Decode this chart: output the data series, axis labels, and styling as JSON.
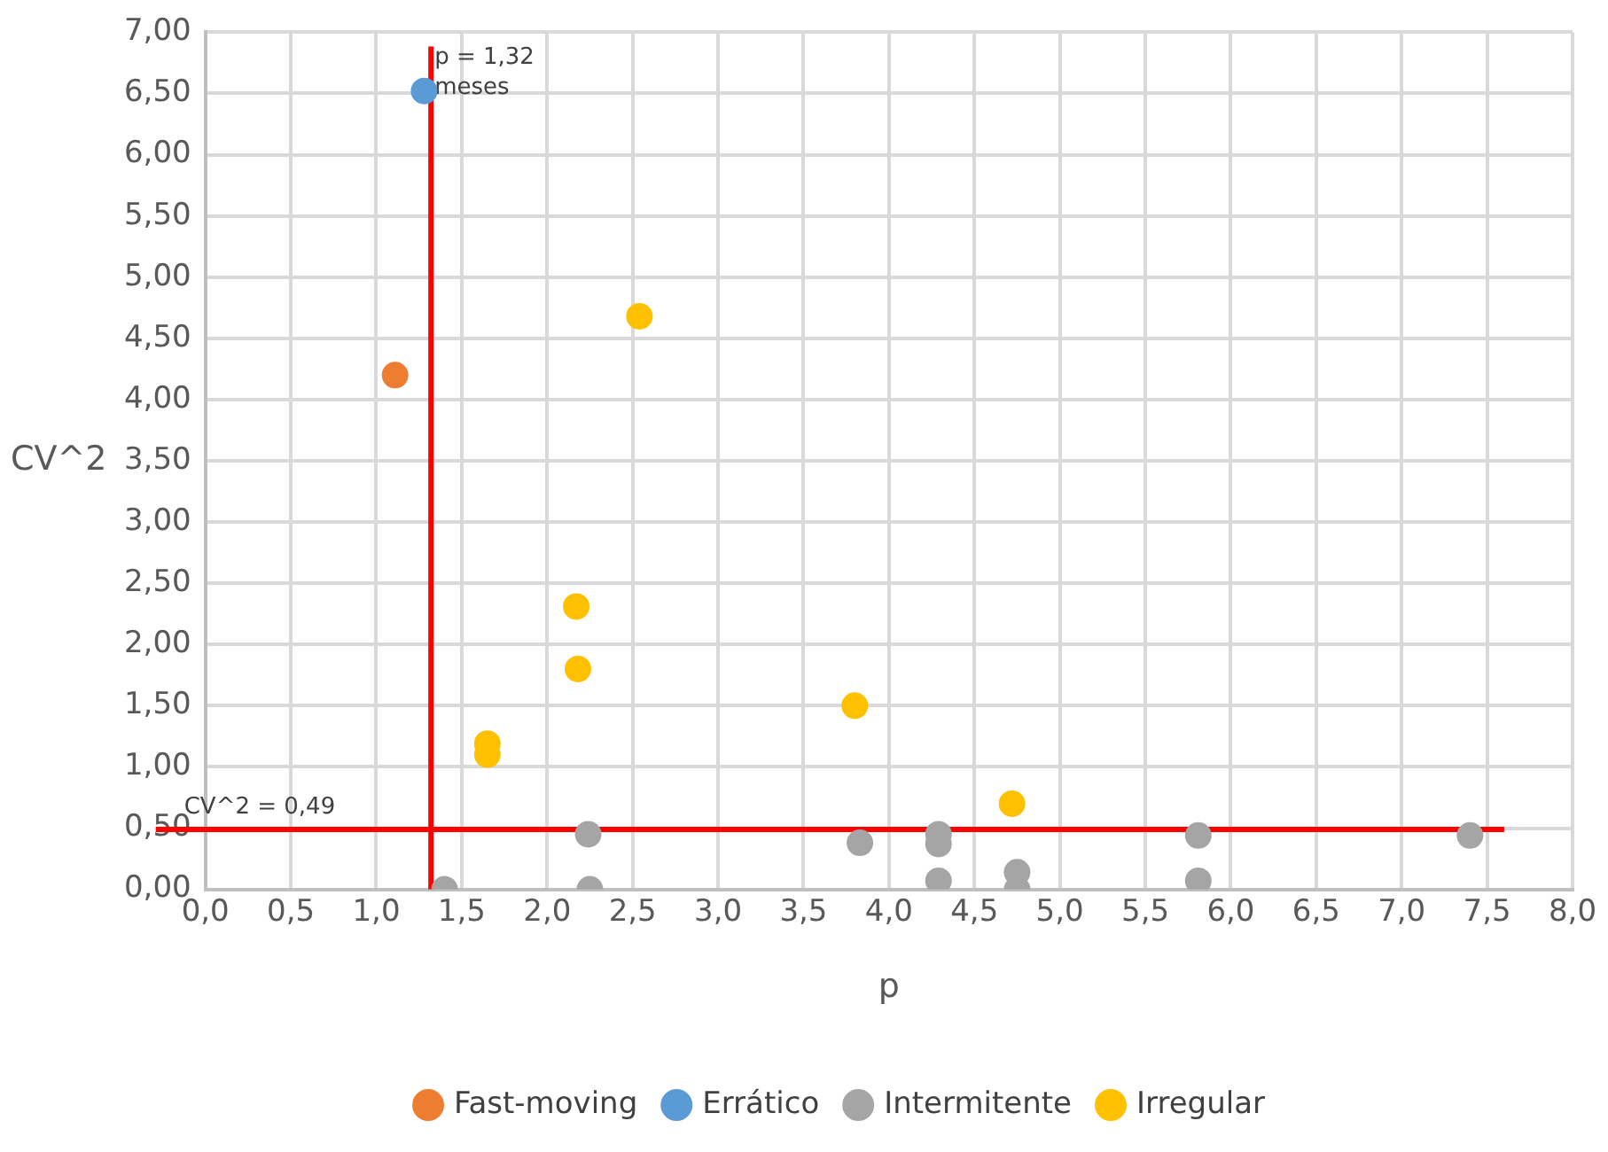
{
  "chart_data": {
    "type": "scatter",
    "xlabel": "p",
    "ylabel": "CV^2",
    "xlim": [
      0,
      8
    ],
    "ylim": [
      0,
      7
    ],
    "xticks": [
      {
        "value": 0,
        "label": "0,0"
      },
      {
        "value": 0.5,
        "label": "0,5"
      },
      {
        "value": 1,
        "label": "1,0"
      },
      {
        "value": 1.5,
        "label": "1,5"
      },
      {
        "value": 2,
        "label": "2,0"
      },
      {
        "value": 2.5,
        "label": "2,5"
      },
      {
        "value": 3,
        "label": "3,0"
      },
      {
        "value": 3.5,
        "label": "3,5"
      },
      {
        "value": 4,
        "label": "4,0"
      },
      {
        "value": 4.5,
        "label": "4,5"
      },
      {
        "value": 5,
        "label": "5,0"
      },
      {
        "value": 5.5,
        "label": "5,5"
      },
      {
        "value": 6,
        "label": "6,0"
      },
      {
        "value": 6.5,
        "label": "6,5"
      },
      {
        "value": 7,
        "label": "7,0"
      },
      {
        "value": 7.5,
        "label": "7,5"
      },
      {
        "value": 8,
        "label": "8,0"
      }
    ],
    "yticks": [
      {
        "value": 0,
        "label": "0,00"
      },
      {
        "value": 0.5,
        "label": "0,50"
      },
      {
        "value": 1,
        "label": "1,00"
      },
      {
        "value": 1.5,
        "label": "1,50"
      },
      {
        "value": 2,
        "label": "2,00"
      },
      {
        "value": 2.5,
        "label": "2,50"
      },
      {
        "value": 3,
        "label": "3,00"
      },
      {
        "value": 3.5,
        "label": "3,50"
      },
      {
        "value": 4,
        "label": "4,00"
      },
      {
        "value": 4.5,
        "label": "4,50"
      },
      {
        "value": 5,
        "label": "5,00"
      },
      {
        "value": 5.5,
        "label": "5,50"
      },
      {
        "value": 6,
        "label": "6,00"
      },
      {
        "value": 6.5,
        "label": "6,50"
      },
      {
        "value": 7,
        "label": "7,00"
      }
    ],
    "series": [
      {
        "name": "Fast-moving",
        "color": "#ed7d31",
        "x": [
          1.11
        ],
        "values": [
          4.2
        ]
      },
      {
        "name": "Errático",
        "color": "#5b9bd5",
        "x": [
          1.28
        ],
        "values": [
          6.52
        ]
      },
      {
        "name": "Intermitente",
        "color": "#a5a5a5",
        "x": [
          1.4,
          2.24,
          2.25,
          3.83,
          4.29,
          4.29,
          4.29,
          4.75,
          4.75,
          5.81,
          5.81,
          7.4
        ],
        "values": [
          0,
          0.45,
          0,
          0.38,
          0.45,
          0.37,
          0.07,
          0.14,
          0,
          0.44,
          0.07,
          0.44
        ]
      },
      {
        "name": "Irregular",
        "color": "#ffc000",
        "x": [
          2.54,
          2.17,
          2.18,
          1.65,
          1.65,
          3.8,
          4.72
        ],
        "values": [
          4.68,
          2.31,
          1.8,
          1.19,
          1.1,
          1.5,
          0.7
        ]
      }
    ],
    "ref_lines": [
      {
        "axis": "x",
        "value": 1.32,
        "label": "p = 1,32 meses",
        "color": "#ff0000"
      },
      {
        "axis": "y",
        "value": 0.49,
        "label": "CV^2 = 0,49",
        "color": "#ff0000"
      }
    ],
    "grid": true,
    "legend": "bottom",
    "marker": "circle"
  }
}
